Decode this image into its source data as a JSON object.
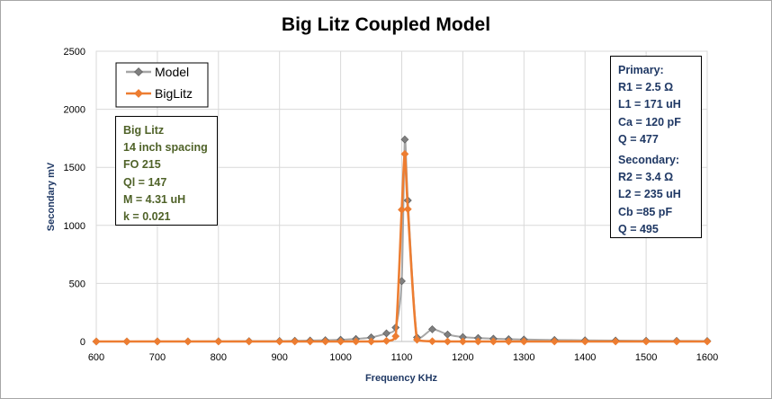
{
  "chart_data": {
    "type": "line",
    "title": "Big Litz Coupled Model",
    "xlabel": "Frequency  KHz",
    "ylabel": "Secondary  mV",
    "xlim": [
      600,
      1600
    ],
    "ylim": [
      0,
      2500
    ],
    "x_ticks": [
      "600",
      "700",
      "800",
      "900",
      "1000",
      "1100",
      "1200",
      "1300",
      "1400",
      "1500",
      "1600"
    ],
    "y_ticks": [
      "0",
      "500",
      "1000",
      "1500",
      "2000",
      "2500"
    ],
    "grid": true,
    "legend_position": "top-left",
    "series": [
      {
        "name": "Model",
        "color": "#a6a6a6",
        "marker_color": "#7f7f7f",
        "marker": "diamond",
        "points": [
          [
            600,
            0
          ],
          [
            650,
            0
          ],
          [
            700,
            1
          ],
          [
            750,
            1
          ],
          [
            800,
            2
          ],
          [
            850,
            3
          ],
          [
            900,
            4
          ],
          [
            925,
            6
          ],
          [
            950,
            8
          ],
          [
            975,
            11
          ],
          [
            1000,
            15
          ],
          [
            1025,
            22
          ],
          [
            1050,
            35
          ],
          [
            1075,
            70
          ],
          [
            1090,
            120
          ],
          [
            1100,
            520
          ],
          [
            1105,
            1740
          ],
          [
            1110,
            1215
          ],
          [
            1125,
            35
          ],
          [
            1150,
            105
          ],
          [
            1175,
            60
          ],
          [
            1200,
            38
          ],
          [
            1225,
            30
          ],
          [
            1250,
            24
          ],
          [
            1275,
            20
          ],
          [
            1300,
            17
          ],
          [
            1350,
            13
          ],
          [
            1400,
            10
          ],
          [
            1450,
            8
          ],
          [
            1500,
            6
          ],
          [
            1550,
            5
          ],
          [
            1600,
            4
          ]
        ]
      },
      {
        "name": "BigLitz",
        "color": "#ed7d31",
        "marker_color": "#ed7d31",
        "marker": "diamond",
        "points": [
          [
            600,
            0
          ],
          [
            650,
            0
          ],
          [
            700,
            0
          ],
          [
            750,
            0
          ],
          [
            800,
            0
          ],
          [
            850,
            0
          ],
          [
            900,
            0
          ],
          [
            925,
            0
          ],
          [
            950,
            0
          ],
          [
            975,
            0
          ],
          [
            1000,
            0
          ],
          [
            1025,
            0
          ],
          [
            1050,
            0
          ],
          [
            1075,
            5
          ],
          [
            1090,
            45
          ],
          [
            1100,
            1135
          ],
          [
            1105,
            1615
          ],
          [
            1110,
            1140
          ],
          [
            1125,
            15
          ],
          [
            1150,
            2
          ],
          [
            1175,
            0
          ],
          [
            1200,
            0
          ],
          [
            1225,
            0
          ],
          [
            1250,
            0
          ],
          [
            1275,
            0
          ],
          [
            1300,
            0
          ],
          [
            1350,
            0
          ],
          [
            1400,
            0
          ],
          [
            1450,
            0
          ],
          [
            1500,
            0
          ],
          [
            1550,
            0
          ],
          [
            1600,
            0
          ]
        ]
      }
    ],
    "annotations": {
      "left_box": [
        "Big Litz",
        "14 inch spacing",
        "FO 215",
        "Ql = 147",
        "M = 4.31 uH",
        "k = 0.021"
      ],
      "primary": [
        "Primary:",
        "R1 = 2.5 Ω",
        "L1 = 171 uH",
        "Ca = 120  pF",
        "Q = 477"
      ],
      "secondary": [
        "Secondary:",
        "R2 = 3.4 Ω",
        "L2 = 235 uH",
        "Cb =85 pF",
        "Q = 495"
      ]
    }
  }
}
